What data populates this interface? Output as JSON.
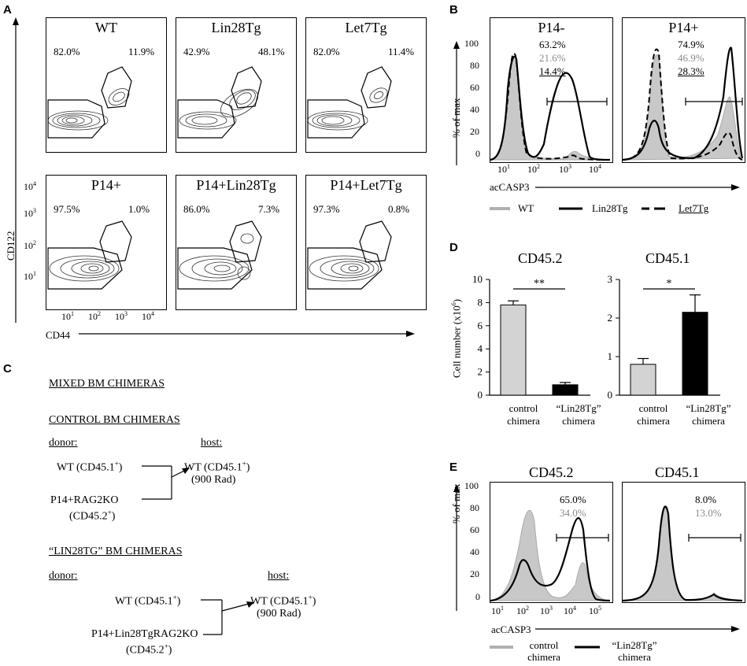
{
  "panel_letters": {
    "a": "A",
    "b": "B",
    "c": "C",
    "d": "D",
    "e": "E"
  },
  "panelA": {
    "plots": [
      {
        "title": "WT",
        "left_pct": "82.0%",
        "right_pct": "11.9%"
      },
      {
        "title": "Lin28Tg",
        "left_pct": "42.9%",
        "right_pct": "48.1%"
      },
      {
        "title": "Let7Tg",
        "left_pct": "82.0%",
        "right_pct": "11.4%"
      },
      {
        "title": "P14+",
        "left_pct": "97.5%",
        "right_pct": "1.0%"
      },
      {
        "title": "P14+Lin28Tg",
        "left_pct": "86.0%",
        "right_pct": "7.3%"
      },
      {
        "title": "P14+Let7Tg",
        "left_pct": "97.3%",
        "right_pct": "0.8%"
      }
    ],
    "y_axis_label": "CD122",
    "x_axis_label": "CD44",
    "y_ticks": [
      "10",
      "10",
      "10",
      "10"
    ],
    "y_tick_exp": [
      "4",
      "3",
      "2",
      "1"
    ],
    "x_ticks": [
      "10",
      "10",
      "10",
      "10"
    ],
    "x_tick_exp": [
      "1",
      "2",
      "3",
      "4"
    ]
  },
  "panelB": {
    "plots": [
      {
        "title": "P14-",
        "wt_pct": "21.6%",
        "lin_pct": "63.2%",
        "let_pct": "14.4%"
      },
      {
        "title": "P14+",
        "wt_pct": "46.9%",
        "lin_pct": "74.9%",
        "let_pct": "28.3%"
      }
    ],
    "y_axis_label": "% of max",
    "x_axis_label": "acCASP3",
    "y_ticks": [
      "100",
      "80",
      "60",
      "40",
      "20",
      "0"
    ],
    "x_ticks": [
      "10",
      "10",
      "10",
      "10"
    ],
    "x_tick_exp": [
      "1",
      "2",
      "3",
      "4"
    ],
    "legend": {
      "wt": "WT",
      "lin": "Lin28Tg",
      "let": "Let7Tg"
    }
  },
  "panelC": {
    "heading": "MIXED BM CHIMERAS",
    "control_heading": "CONTROL BM CHIMERAS",
    "lin_heading": "“LIN28TG” BM CHIMERAS",
    "donor_label": "donor:",
    "host_label": "host:",
    "control": {
      "donor1": "WT (CD45.1",
      "donor1_sup": "+",
      "donor2a": "P14+RAG2KO",
      "donor2b": "(CD45.2",
      "donor2b_sup": "+",
      "host1": "WT (CD45.1",
      "host1_sup": "+",
      "host2": "(900 Rad)"
    },
    "lin": {
      "donor1": "WT (CD45.1",
      "donor1_sup": "+",
      "donor2a": "P14+Lin28TgRAG2KO",
      "donor2b": "(CD45.2",
      "donor2b_sup": "+",
      "host1": "WT (CD45.1",
      "host1_sup": "+",
      "host2": "(900 Rad)"
    },
    "close_paren": ")"
  },
  "panelD": {
    "y_axis_label": "Cell number (x10",
    "y_axis_exp": "6",
    "y_axis_close": ")",
    "cat1a": "control",
    "cat1b": "chimera",
    "cat2a": "“Lin28Tg”",
    "cat2b": "chimera"
  },
  "panelE": {
    "plots": [
      {
        "title": "CD45.2",
        "lin_pct": "65.0%",
        "ctrl_pct": "34.0%"
      },
      {
        "title": "CD45.1",
        "lin_pct": "8.0%",
        "ctrl_pct": "13.0%"
      }
    ],
    "y_axis_label": "% of max",
    "x_axis_label": "acCASP3",
    "y_ticks": [
      "100",
      "80",
      "60",
      "40",
      "20",
      "0"
    ],
    "x_ticks": [
      "10",
      "10",
      "10",
      "10",
      "10"
    ],
    "x_tick_exp": [
      "1",
      "2",
      "3",
      "4",
      "5"
    ],
    "legend": {
      "ctrl_a": "control",
      "ctrl_b": "chimera",
      "lin_a": "“Lin28Tg”",
      "lin_b": "chimera"
    }
  },
  "chart_data": [
    {
      "type": "bar",
      "title": "CD45.2",
      "categories": [
        "control chimera",
        "“Lin28Tg” chimera"
      ],
      "values": [
        7.8,
        0.9
      ],
      "errors": [
        0.35,
        0.2
      ],
      "colors": [
        "#d3d3d3",
        "#000000"
      ],
      "significance": "**",
      "ylabel": "Cell number (x10^6)",
      "ylim": [
        0,
        10
      ],
      "yticks": [
        0,
        2,
        4,
        6,
        8,
        10
      ]
    },
    {
      "type": "bar",
      "title": "CD45.1",
      "categories": [
        "control chimera",
        "“Lin28Tg” chimera"
      ],
      "values": [
        0.8,
        2.15
      ],
      "errors": [
        0.15,
        0.45
      ],
      "colors": [
        "#d3d3d3",
        "#000000"
      ],
      "significance": "*",
      "ylabel": "Cell number (x10^6)",
      "ylim": [
        0,
        3
      ],
      "yticks": [
        0,
        1,
        2,
        3
      ]
    }
  ]
}
